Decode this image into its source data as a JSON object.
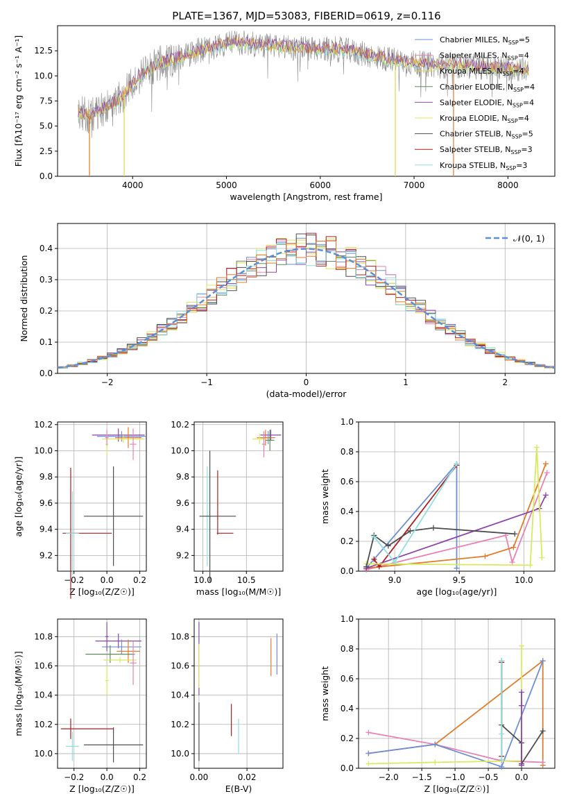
{
  "title": "PLATE=1367, MJD=53083, FIBERID=0619, z=0.116",
  "colors": {
    "chabrier_miles": "#6b8fd6",
    "salpeter_miles": "#e882b4",
    "kroupa_miles": "#e9d24a",
    "chabrier_elodie": "#5f8a5f",
    "salpeter_elodie": "#8e44ad",
    "kroupa_elodie": "#d8ea5c",
    "chabrier_stelib": "#4d4d4d",
    "salpeter_stelib": "#b01c1c",
    "kroupa_stelib": "#8ee0e0",
    "orange": "#e07b2a",
    "gaussian": "#5b8fd6",
    "grid": "#b0b0b0"
  },
  "chart_data": [
    {
      "id": "spectrum",
      "type": "line",
      "xlabel": "wavelength [Angstrom, rest frame]",
      "ylabel": "Flux [fλ10⁻¹⁷ erg cm⁻² s⁻¹ A⁻¹]",
      "xlim": [
        3200,
        8500
      ],
      "ylim": [
        0,
        15
      ],
      "xticks": [
        "4000",
        "5000",
        "6000",
        "7000",
        "8000"
      ],
      "yticks": [
        "0.0",
        "2.5",
        "5.0",
        "7.5",
        "10.0",
        "12.5"
      ],
      "legend_position": "right",
      "legend": [
        {
          "text": "Chabrier MILES, N",
          "sub": "SSP",
          "suffix": "=5",
          "color": "#6b8fd6"
        },
        {
          "text": "Salpeter MILES, N",
          "sub": "SSP",
          "suffix": "=4",
          "color": "#e882b4"
        },
        {
          "text": "Kroupa MILES, N",
          "sub": "SSP",
          "suffix": "=4",
          "color": "#e9d24a"
        },
        {
          "text": "Chabrier ELODIE, N",
          "sub": "SSP",
          "suffix": "=4",
          "color": "#5f8a5f"
        },
        {
          "text": "Salpeter ELODIE, N",
          "sub": "SSP",
          "suffix": "=4",
          "color": "#8e44ad"
        },
        {
          "text": "Kroupa ELODIE, N",
          "sub": "SSP",
          "suffix": "=4",
          "color": "#d8ea5c"
        },
        {
          "text": "Chabrier STELIB, N",
          "sub": "SSP",
          "suffix": "=5",
          "color": "#4d4d4d"
        },
        {
          "text": "Salpeter STELIB, N",
          "sub": "SSP",
          "suffix": "=3",
          "color": "#b01c1c"
        },
        {
          "text": "Kroupa STELIB, N",
          "sub": "SSP",
          "suffix": "=3",
          "color": "#8ee0e0"
        }
      ],
      "continuum": [
        [
          3420,
          6.3
        ],
        [
          3550,
          6.0
        ],
        [
          3700,
          6.8
        ],
        [
          3850,
          7.6
        ],
        [
          3950,
          8.6
        ],
        [
          4050,
          9.8
        ],
        [
          4150,
          10.6
        ],
        [
          4300,
          11.3
        ],
        [
          4500,
          11.8
        ],
        [
          4700,
          12.5
        ],
        [
          4900,
          13.0
        ],
        [
          5100,
          13.4
        ],
        [
          5300,
          13.1
        ],
        [
          5500,
          13.0
        ],
        [
          5700,
          12.9
        ],
        [
          5900,
          12.7
        ],
        [
          6100,
          12.7
        ],
        [
          6300,
          12.5
        ],
        [
          6500,
          12.1
        ],
        [
          6700,
          11.7
        ],
        [
          6900,
          11.4
        ],
        [
          7100,
          11.2
        ],
        [
          7300,
          11.0
        ],
        [
          7500,
          11.0
        ],
        [
          7700,
          10.9
        ],
        [
          7900,
          10.8
        ],
        [
          8100,
          10.7
        ],
        [
          8220,
          10.6
        ]
      ],
      "spikes": [
        {
          "x": 3540,
          "color": "#e07b2a"
        },
        {
          "x": 3910,
          "color": "#e9d24a"
        },
        {
          "x": 6800,
          "color": "#e9d24a"
        },
        {
          "x": 7420,
          "color": "#e07b2a"
        }
      ]
    },
    {
      "id": "residuals",
      "type": "histogram",
      "xlabel": "(data-model)/error",
      "ylabel": "Normed distribution",
      "xlim": [
        -2.5,
        2.5
      ],
      "ylim": [
        0,
        0.48
      ],
      "xticks": [
        "−2",
        "−1",
        "0",
        "1",
        "2"
      ],
      "xtick_values": [
        -2,
        -1,
        0,
        1,
        2
      ],
      "yticks": [
        "0.0",
        "0.1",
        "0.2",
        "0.3",
        "0.4"
      ],
      "ytick_values": [
        0,
        0.1,
        0.2,
        0.3,
        0.4
      ],
      "legend": [
        {
          "text": "𝒩(0, 1)",
          "style": "dashed"
        }
      ],
      "legend_position": "top-right",
      "bin_width": 0.1
    },
    {
      "id": "age_vs_Z",
      "type": "scatter",
      "xlabel": "Z [log₁₀(Z/Z☉)]",
      "ylabel": "age  [log₁₀(age/yr)]",
      "xlim": [
        -0.3,
        0.24
      ],
      "ylim": [
        9.08,
        10.22
      ],
      "xticks": [
        "−0.2",
        "0.0",
        "0.2"
      ],
      "xtick_values": [
        -0.2,
        0,
        0.2
      ],
      "yticks": [
        "9.2",
        "9.4",
        "9.6",
        "9.8",
        "10.0",
        "10.2"
      ],
      "ytick_values": [
        9.2,
        9.4,
        9.6,
        9.8,
        10.0,
        10.2
      ],
      "points": [
        {
          "x": 0.04,
          "y": 9.5,
          "dx": 0.18,
          "dy": 0.38,
          "color": "#4d4d4d"
        },
        {
          "x": -0.22,
          "y": 9.37,
          "dx": 0.06,
          "dy": 0.5,
          "color": "#b01c1c",
          "xlo": 0.05,
          "xhi": 0.25
        },
        {
          "x": -0.21,
          "y": 9.37,
          "dx": 0.04,
          "dy": 0.32,
          "color": "#8ee0e0"
        },
        {
          "x": 0.07,
          "y": 10.12,
          "dx": 0.16,
          "dy": 0.05,
          "color": "#8e44ad"
        },
        {
          "x": 0.09,
          "y": 10.11,
          "dx": 0.15,
          "dy": 0.04,
          "color": "#6b8fd6"
        },
        {
          "x": 0.13,
          "y": 10.1,
          "dx": 0.08,
          "dy": 0.08,
          "color": "#e07b2a"
        },
        {
          "x": 0.1,
          "y": 10.09,
          "dx": 0.13,
          "dy": 0.03,
          "color": "#d8ea5c"
        },
        {
          "x": 0.16,
          "y": 10.05,
          "dx": 0.02,
          "dy": 0.12,
          "color": "#e882b4"
        },
        {
          "x": 0.0,
          "y": 10.05,
          "dx": 0.01,
          "dy": 0.08,
          "color": "#d8ea5c"
        },
        {
          "x": 0.0,
          "y": 10.1,
          "dx": 0.01,
          "dy": 0.06,
          "color": "#e882b4"
        }
      ]
    },
    {
      "id": "age_vs_mass",
      "type": "scatter",
      "xlabel": "mass [log₁₀(M/M☉)]",
      "ylabel": "",
      "xlim": [
        9.9,
        10.92
      ],
      "ylim": [
        9.08,
        10.22
      ],
      "xticks": [
        "10.0",
        "10.5"
      ],
      "xtick_values": [
        10.0,
        10.5
      ],
      "yticks": [
        "9.2",
        "9.4",
        "9.6",
        "9.8",
        "10.0",
        "10.2"
      ],
      "ytick_values": [
        9.2,
        9.4,
        9.6,
        9.8,
        10.0,
        10.2
      ],
      "points": [
        {
          "x": 10.05,
          "y": 9.5,
          "dx": 0.05,
          "dy": 0.38,
          "color": "#8ee0e0"
        },
        {
          "x": 10.08,
          "y": 9.5,
          "dx": 0.15,
          "dy": 0.5,
          "color": "#4d4d4d",
          "xlo": 0.12,
          "xhi": 0.3
        },
        {
          "x": 10.17,
          "y": 9.37,
          "dx": 0.2,
          "dy": 0.48,
          "color": "#b01c1c",
          "xlo": 0.01,
          "xhi": 0.18,
          "ylo": 0.01,
          "yhi": 0.48
        },
        {
          "x": 10.78,
          "y": 10.12,
          "dx": 0.12,
          "dy": 0.04,
          "color": "#8e44ad"
        },
        {
          "x": 10.75,
          "y": 10.1,
          "dx": 0.08,
          "dy": 0.05,
          "color": "#6b8fd6"
        },
        {
          "x": 10.72,
          "y": 10.1,
          "dx": 0.1,
          "dy": 0.06,
          "color": "#e07b2a"
        },
        {
          "x": 10.65,
          "y": 10.09,
          "dx": 0.08,
          "dy": 0.04,
          "color": "#d8ea5c"
        },
        {
          "x": 10.7,
          "y": 10.05,
          "dx": 0.02,
          "dy": 0.1,
          "color": "#e882b4"
        },
        {
          "x": 10.77,
          "y": 10.08,
          "dx": 0.05,
          "dy": 0.08,
          "color": "#5f8a5f"
        }
      ]
    },
    {
      "id": "massweight_vs_age",
      "type": "line",
      "xlabel": "age  [log₁₀(age/yr)]",
      "ylabel": "mass weight",
      "xlim": [
        8.72,
        10.24
      ],
      "ylim": [
        0,
        1.0
      ],
      "xticks": [
        "9.0",
        "9.5",
        "10.0"
      ],
      "xtick_values": [
        9.0,
        9.5,
        10.0
      ],
      "yticks": [
        "0.0",
        "0.2",
        "0.4",
        "0.6",
        "0.8",
        "1.0"
      ],
      "ytick_values": [
        0,
        0.2,
        0.4,
        0.6,
        0.8,
        1.0
      ],
      "series": [
        {
          "color": "#6b8fd6",
          "points": [
            [
              8.78,
              0.02
            ],
            [
              9.48,
              0.72
            ],
            [
              9.48,
              0.02
            ]
          ]
        },
        {
          "color": "#e882b4",
          "points": [
            [
              8.78,
              0.01
            ],
            [
              9.86,
              0.24
            ],
            [
              9.91,
              0.06
            ],
            [
              10.18,
              0.66
            ]
          ]
        },
        {
          "color": "#e07b2a",
          "points": [
            [
              8.78,
              0.02
            ],
            [
              9.7,
              0.1
            ],
            [
              9.92,
              0.16
            ],
            [
              10.17,
              0.72
            ]
          ]
        },
        {
          "color": "#b01c1c",
          "points": [
            [
              8.84,
              0.08
            ],
            [
              8.88,
              0.03
            ],
            [
              9.48,
              0.71
            ]
          ]
        },
        {
          "color": "#8e44ad",
          "points": [
            [
              8.78,
              0.02
            ],
            [
              10.12,
              0.42
            ],
            [
              10.17,
              0.51
            ]
          ]
        },
        {
          "color": "#d8ea5c",
          "points": [
            [
              8.78,
              0.05
            ],
            [
              10.05,
              0.04
            ],
            [
              10.1,
              0.83
            ],
            [
              10.14,
              0.09
            ]
          ]
        },
        {
          "color": "#4d4d4d",
          "points": [
            [
              8.78,
              0.03
            ],
            [
              8.84,
              0.24
            ],
            [
              8.95,
              0.17
            ],
            [
              9.12,
              0.27
            ],
            [
              9.3,
              0.29
            ],
            [
              9.93,
              0.25
            ]
          ]
        },
        {
          "color": "#8ee0e0",
          "points": [
            [
              8.84,
              0.23
            ],
            [
              9.0,
              0.06
            ],
            [
              9.48,
              0.72
            ]
          ]
        }
      ]
    },
    {
      "id": "mass_vs_Z",
      "type": "scatter",
      "xlabel": "Z [log₁₀(Z/Z☉)]",
      "ylabel": "mass [log₁₀(M/M☉)]",
      "xlim": [
        -0.3,
        0.24
      ],
      "ylim": [
        9.9,
        10.92
      ],
      "xticks": [
        "−0.2",
        "0.0",
        "0.2"
      ],
      "xtick_values": [
        -0.2,
        0,
        0.2
      ],
      "yticks": [
        "10.0",
        "10.2",
        "10.4",
        "10.6",
        "10.8"
      ],
      "ytick_values": [
        10.0,
        10.2,
        10.4,
        10.6,
        10.8
      ],
      "points": [
        {
          "x": 0.04,
          "y": 10.06,
          "dx": 0.18,
          "dy": 0.12,
          "color": "#4d4d4d"
        },
        {
          "x": -0.21,
          "y": 10.05,
          "dx": 0.04,
          "dy": 0.1,
          "color": "#8ee0e0"
        },
        {
          "x": -0.22,
          "y": 10.17,
          "dx": 0.06,
          "dy": 0.07,
          "color": "#b01c1c",
          "xlo": 0.06,
          "xhi": 0.26
        },
        {
          "x": 0.07,
          "y": 10.77,
          "dx": 0.14,
          "dy": 0.05,
          "color": "#8e44ad"
        },
        {
          "x": 0.09,
          "y": 10.73,
          "dx": 0.12,
          "dy": 0.05,
          "color": "#6b8fd6"
        },
        {
          "x": 0.13,
          "y": 10.7,
          "dx": 0.07,
          "dy": 0.08,
          "color": "#e07b2a"
        },
        {
          "x": 0.02,
          "y": 10.68,
          "dx": 0.15,
          "dy": 0.06,
          "color": "#5f8a5f"
        },
        {
          "x": 0.08,
          "y": 10.64,
          "dx": 0.1,
          "dy": 0.02,
          "color": "#d8ea5c"
        },
        {
          "x": 0.16,
          "y": 10.62,
          "dx": 0.02,
          "dy": 0.15,
          "color": "#e882b4"
        },
        {
          "x": 0.0,
          "y": 10.5,
          "dx": 0.01,
          "dy": 0.1,
          "color": "#d8ea5c"
        },
        {
          "x": 0.0,
          "y": 10.8,
          "dx": 0.01,
          "dy": 0.1,
          "color": "#8e44ad"
        }
      ]
    },
    {
      "id": "mass_vs_EBV",
      "type": "scatter",
      "xlabel": "E(B-V)",
      "ylabel": "",
      "xlim": [
        -0.002,
        0.035
      ],
      "ylim": [
        9.9,
        10.92
      ],
      "xticks": [
        "0.00",
        "0.02"
      ],
      "xtick_values": [
        0,
        0.02
      ],
      "yticks": [
        "10.0",
        "10.2",
        "10.4",
        "10.6",
        "10.8"
      ],
      "ytick_values": [
        10.0,
        10.2,
        10.4,
        10.6,
        10.8
      ],
      "points": [
        {
          "x": 0.0,
          "y": 10.15,
          "dx": 0,
          "dy": 0.2,
          "color": "#4d4d4d"
        },
        {
          "x": 0.0,
          "y": 10.65,
          "dx": 0,
          "dy": 0.25,
          "color": "#8e44ad"
        },
        {
          "x": 0.0,
          "y": 10.6,
          "dx": 0,
          "dy": 0.15,
          "color": "#d8ea5c"
        },
        {
          "x": 0.0135,
          "y": 10.23,
          "dx": 0,
          "dy": 0.11,
          "color": "#b01c1c"
        },
        {
          "x": 0.0165,
          "y": 10.12,
          "dx": 0,
          "dy": 0.12,
          "color": "#8ee0e0"
        },
        {
          "x": 0.03,
          "y": 10.66,
          "dx": 0,
          "dy": 0.13,
          "color": "#e07b2a"
        },
        {
          "x": 0.0325,
          "y": 10.68,
          "dx": 0,
          "dy": 0.14,
          "color": "#6b8fd6"
        }
      ]
    },
    {
      "id": "massweight_vs_Z",
      "type": "line",
      "xlabel": "Z [log₁₀(Z/Z☉)]",
      "ylabel": "mass weight",
      "xlim": [
        -2.45,
        0.5
      ],
      "ylim": [
        0,
        1.0
      ],
      "xticks": [
        "−2.0",
        "−1.5",
        "−1.0",
        "−0.5",
        "0.0"
      ],
      "xtick_values": [
        -2.0,
        -1.5,
        -1.0,
        -0.5,
        0.0
      ],
      "yticks": [
        "0.0",
        "0.2",
        "0.4",
        "0.6",
        "0.8",
        "1.0"
      ],
      "ytick_values": [
        0,
        0.2,
        0.4,
        0.6,
        0.8,
        1.0
      ],
      "series": [
        {
          "color": "#e07b2a",
          "points": [
            [
              -2.3,
              0.1
            ],
            [
              -1.3,
              0.16
            ],
            [
              0.32,
              0.72
            ],
            [
              0.32,
              0.02
            ]
          ]
        },
        {
          "color": "#e882b4",
          "points": [
            [
              -2.3,
              0.24
            ],
            [
              -1.3,
              0.16
            ],
            [
              -0.3,
              0.05
            ],
            [
              0.32,
              0.04
            ]
          ]
        },
        {
          "color": "#6b8fd6",
          "points": [
            [
              -2.3,
              0.1
            ],
            [
              -1.3,
              0.16
            ],
            [
              -0.3,
              0.01
            ],
            [
              0.32,
              0.72
            ]
          ]
        },
        {
          "color": "#d8ea5c",
          "points": [
            [
              -2.3,
              0.03
            ],
            [
              -1.3,
              0.04
            ],
            [
              0.0,
              0.05
            ],
            [
              0.0,
              0.82
            ]
          ]
        },
        {
          "color": "#4d4d4d",
          "points": [
            [
              -0.3,
              0.72
            ],
            [
              -0.3,
              0.29
            ],
            [
              0.0,
              0.17
            ],
            [
              0.0,
              0.03
            ],
            [
              0.32,
              0.25
            ]
          ]
        },
        {
          "color": "#8e44ad",
          "points": [
            [
              0.0,
              0.51
            ],
            [
              0.0,
              0.42
            ],
            [
              0.0,
              0.02
            ]
          ]
        },
        {
          "color": "#b01c1c",
          "points": [
            [
              -0.3,
              0.71
            ],
            [
              -0.3,
              0.08
            ]
          ]
        },
        {
          "color": "#8ee0e0",
          "points": [
            [
              -0.3,
              0.72
            ],
            [
              -0.3,
              0.23
            ],
            [
              -0.3,
              0.06
            ]
          ]
        }
      ]
    }
  ]
}
